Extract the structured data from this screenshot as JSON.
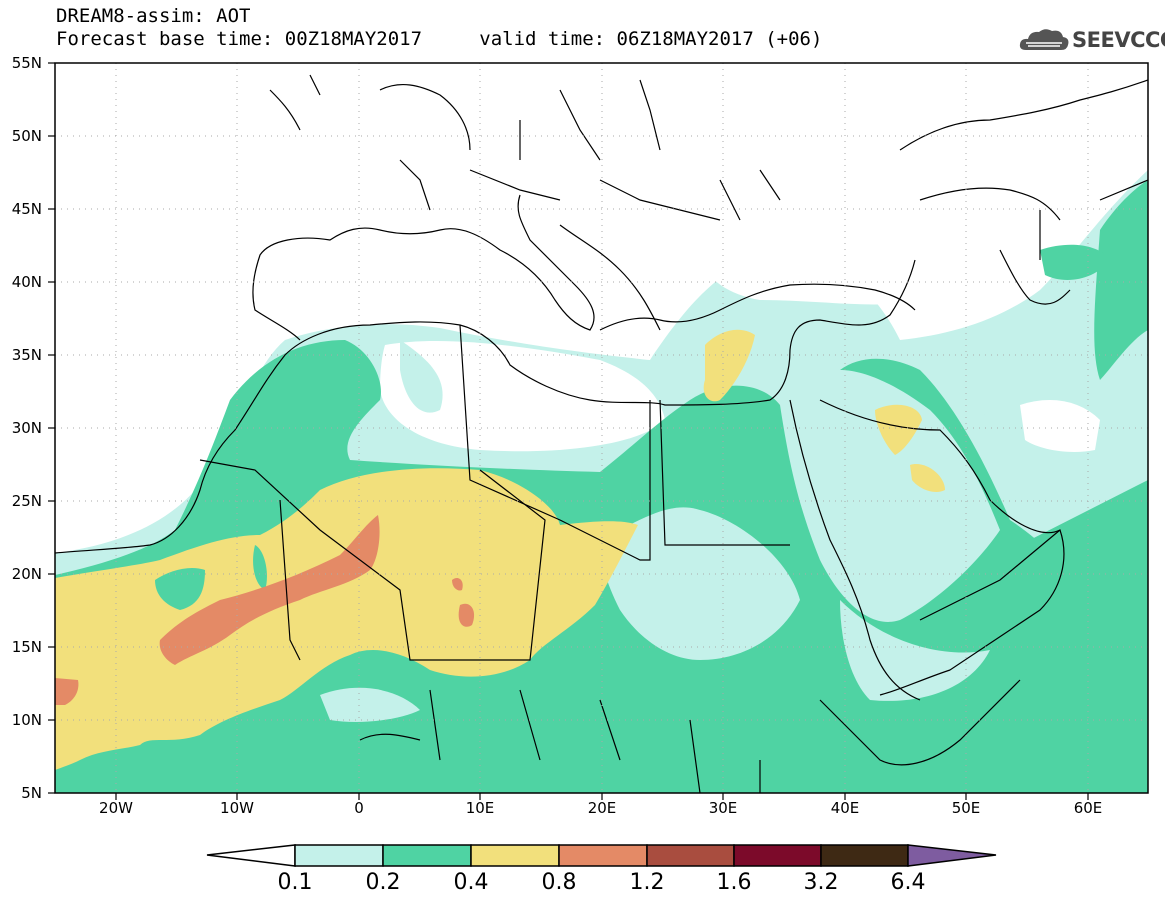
{
  "header": {
    "line1": "DREAM8-assim: AOT",
    "line2": "Forecast base time: 00Z18MAY2017",
    "valid": "valid time: 06Z18MAY2017 (+06)"
  },
  "logo": {
    "text": "SEEVCCC",
    "icon": "cloud-logo-icon"
  },
  "map": {
    "variable": "AOT",
    "region": "North Africa / Mediterranean / Middle East",
    "lat_labels": [
      "55N",
      "50N",
      "45N",
      "40N",
      "35N",
      "30N",
      "25N",
      "20N",
      "15N",
      "10N",
      "5N"
    ],
    "lon_labels": [
      "20W",
      "10W",
      "0",
      "10E",
      "20E",
      "30E",
      "40E",
      "50E",
      "60E"
    ],
    "extent": {
      "lon_min": -25,
      "lon_max": 65,
      "lat_min": 5,
      "lat_max": 55
    }
  },
  "colorbar": {
    "labels": [
      "0.1",
      "0.2",
      "0.4",
      "0.8",
      "1.2",
      "1.6",
      "3.2",
      "6.4"
    ],
    "colors": [
      "#ffffff",
      "#c4f1ea",
      "#4fd3a3",
      "#f2e07c",
      "#e48a66",
      "#a94d3f",
      "#7c0a2a",
      "#3e2914",
      "#7e5ca0"
    ]
  }
}
